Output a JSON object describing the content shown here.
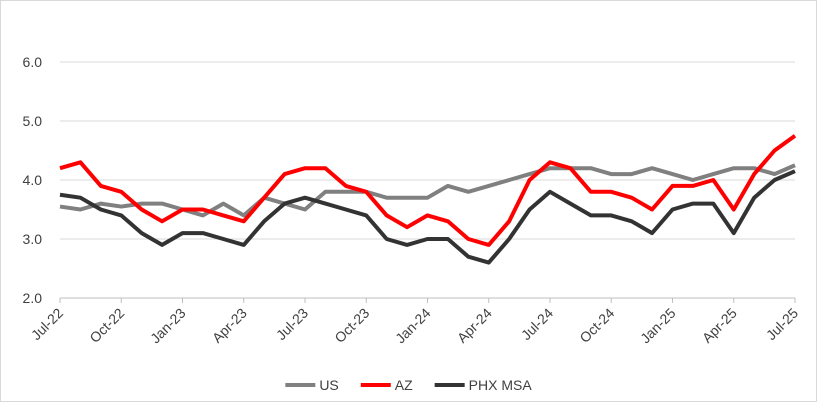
{
  "chart_data": {
    "type": "line",
    "categories": [
      "Jul-22",
      null,
      null,
      "Oct-22",
      null,
      null,
      "Jan-23",
      null,
      null,
      "Apr-23",
      null,
      null,
      "Jul-23",
      null,
      null,
      "Oct-23",
      null,
      null,
      "Jan-24",
      null,
      null,
      "Apr-24",
      null,
      null,
      "Jul-24",
      null,
      null,
      "Oct-24",
      null,
      null,
      "Jan-25",
      null,
      null,
      "Apr-25",
      null,
      null,
      "Jul-25"
    ],
    "series": [
      {
        "name": "US",
        "color": "#808080",
        "values": [
          3.55,
          3.5,
          3.6,
          3.55,
          3.6,
          3.6,
          3.5,
          3.4,
          3.6,
          3.4,
          3.7,
          3.6,
          3.5,
          3.8,
          3.8,
          3.8,
          3.7,
          3.7,
          3.7,
          3.9,
          3.8,
          3.9,
          4.0,
          4.1,
          4.2,
          4.2,
          4.2,
          4.1,
          4.1,
          4.2,
          4.1,
          4.0,
          4.1,
          4.2,
          4.2,
          4.1,
          4.25
        ]
      },
      {
        "name": "AZ",
        "color": "#ff0000",
        "values": [
          4.2,
          4.3,
          3.9,
          3.8,
          3.5,
          3.3,
          3.5,
          3.5,
          3.4,
          3.3,
          3.7,
          4.1,
          4.2,
          4.2,
          3.9,
          3.8,
          3.4,
          3.2,
          3.4,
          3.3,
          3.0,
          2.9,
          3.3,
          4.0,
          4.3,
          4.2,
          3.8,
          3.8,
          3.7,
          3.5,
          3.9,
          3.9,
          4.0,
          3.5,
          4.1,
          4.5,
          4.75
        ]
      },
      {
        "name": "PHX MSA",
        "color": "#333333",
        "values": [
          3.75,
          3.7,
          3.5,
          3.4,
          3.1,
          2.9,
          3.1,
          3.1,
          3.0,
          2.9,
          3.3,
          3.6,
          3.7,
          3.6,
          3.5,
          3.4,
          3.0,
          2.9,
          3.0,
          3.0,
          2.7,
          2.6,
          3.0,
          3.5,
          3.8,
          3.6,
          3.4,
          3.4,
          3.3,
          3.1,
          3.5,
          3.6,
          3.6,
          3.1,
          3.7,
          4.0,
          4.15
        ]
      }
    ],
    "ylim": [
      2,
      6.4
    ],
    "yticks": [
      {
        "value": 2,
        "label": "2.0"
      },
      {
        "value": 3,
        "label": "3.0"
      },
      {
        "value": 4,
        "label": "4.0"
      },
      {
        "value": 5,
        "label": "5.0"
      },
      {
        "value": 6,
        "label": "6.0"
      }
    ],
    "grid": true,
    "legend": "bottom"
  }
}
